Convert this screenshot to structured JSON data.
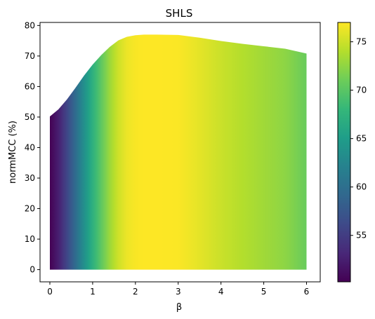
{
  "chart_data": {
    "type": "area",
    "title": "SHLS",
    "xlabel": "β",
    "ylabel": "normMCC (%)",
    "xlim": [
      -0.23,
      6.32
    ],
    "ylim": [
      -4,
      81
    ],
    "xticks": [
      0,
      1,
      2,
      3,
      4,
      5,
      6
    ],
    "yticks": [
      0,
      10,
      20,
      30,
      40,
      50,
      60,
      70,
      80
    ],
    "grid": false,
    "legend": "none",
    "series": [
      {
        "x": [
          0,
          0.2,
          0.4,
          0.6,
          0.8,
          1.0,
          1.2,
          1.4,
          1.6,
          1.8,
          2.0,
          2.2,
          2.5,
          3.0,
          3.5,
          4.0,
          4.5,
          5.0,
          5.5,
          6.0
        ],
        "y": [
          50.2,
          52.5,
          55.8,
          59.6,
          63.6,
          67.2,
          70.3,
          73.0,
          75.1,
          76.3,
          76.8,
          77.0,
          77.0,
          76.9,
          76.0,
          74.9,
          74.0,
          73.2,
          72.4,
          70.8
        ]
      }
    ],
    "colorbar": {
      "colormap": "viridis",
      "range": [
        50.2,
        77.0
      ],
      "ticks": [
        55,
        60,
        65,
        70,
        75
      ]
    }
  }
}
